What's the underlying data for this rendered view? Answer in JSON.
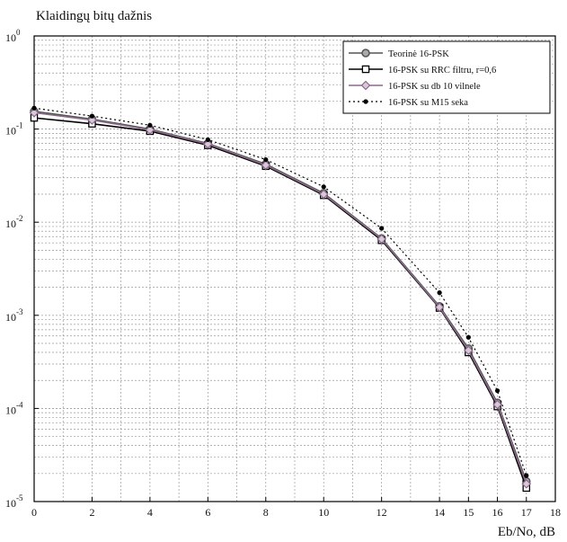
{
  "chart_data": {
    "type": "line",
    "title": "",
    "ylabel": "Klaidingų bitų dažnis",
    "xlabel": "Eb/No, dB",
    "x_ticks": [
      0,
      2,
      4,
      6,
      8,
      10,
      12,
      14,
      15,
      16,
      17,
      18
    ],
    "xlim": [
      0,
      18
    ],
    "yscale": "log",
    "ylim": [
      1e-05,
      1
    ],
    "y_tick_labels": [
      {
        "base": "10",
        "exp": "0",
        "value": 1
      },
      {
        "base": "10",
        "exp": "-1",
        "value": 0.1
      },
      {
        "base": "10",
        "exp": "-2",
        "value": 0.01
      },
      {
        "base": "10",
        "exp": "-3",
        "value": 0.001
      },
      {
        "base": "10",
        "exp": "-4",
        "value": 0.0001
      },
      {
        "base": "10",
        "exp": "-5",
        "value": 1e-05
      }
    ],
    "grid": true,
    "legend_position": "top-right",
    "x": [
      0,
      2,
      4,
      6,
      8,
      10,
      12,
      14,
      15,
      16,
      17
    ],
    "series": [
      {
        "name": "Teorinė 16-PSK",
        "marker": "circle",
        "line": "solid",
        "color": "#555555",
        "values": [
          0.155,
          0.128,
          0.1,
          0.07,
          0.042,
          0.0205,
          0.0067,
          0.00125,
          0.00044,
          0.000115,
          1.65e-05
        ]
      },
      {
        "name": "16-PSK su RRC filtru, r=0,6",
        "marker": "square",
        "line": "solid",
        "color": "#000000",
        "values": [
          0.132,
          0.114,
          0.095,
          0.067,
          0.04,
          0.0195,
          0.0064,
          0.0012,
          0.0004,
          0.000105,
          1.4e-05
        ]
      },
      {
        "name": "16-PSK su db 10 vilnele",
        "marker": "diamond",
        "line": "solid",
        "color": "#8a6a8a",
        "values": [
          0.15,
          0.125,
          0.098,
          0.069,
          0.041,
          0.02,
          0.0066,
          0.00122,
          0.00042,
          0.00011,
          1.55e-05
        ]
      },
      {
        "name": "16-PSK su M15 seka",
        "marker": "dot",
        "line": "dotted",
        "color": "#000000",
        "values": [
          0.168,
          0.138,
          0.11,
          0.077,
          0.047,
          0.024,
          0.0086,
          0.00175,
          0.00058,
          0.000155,
          1.9e-05
        ]
      }
    ]
  }
}
